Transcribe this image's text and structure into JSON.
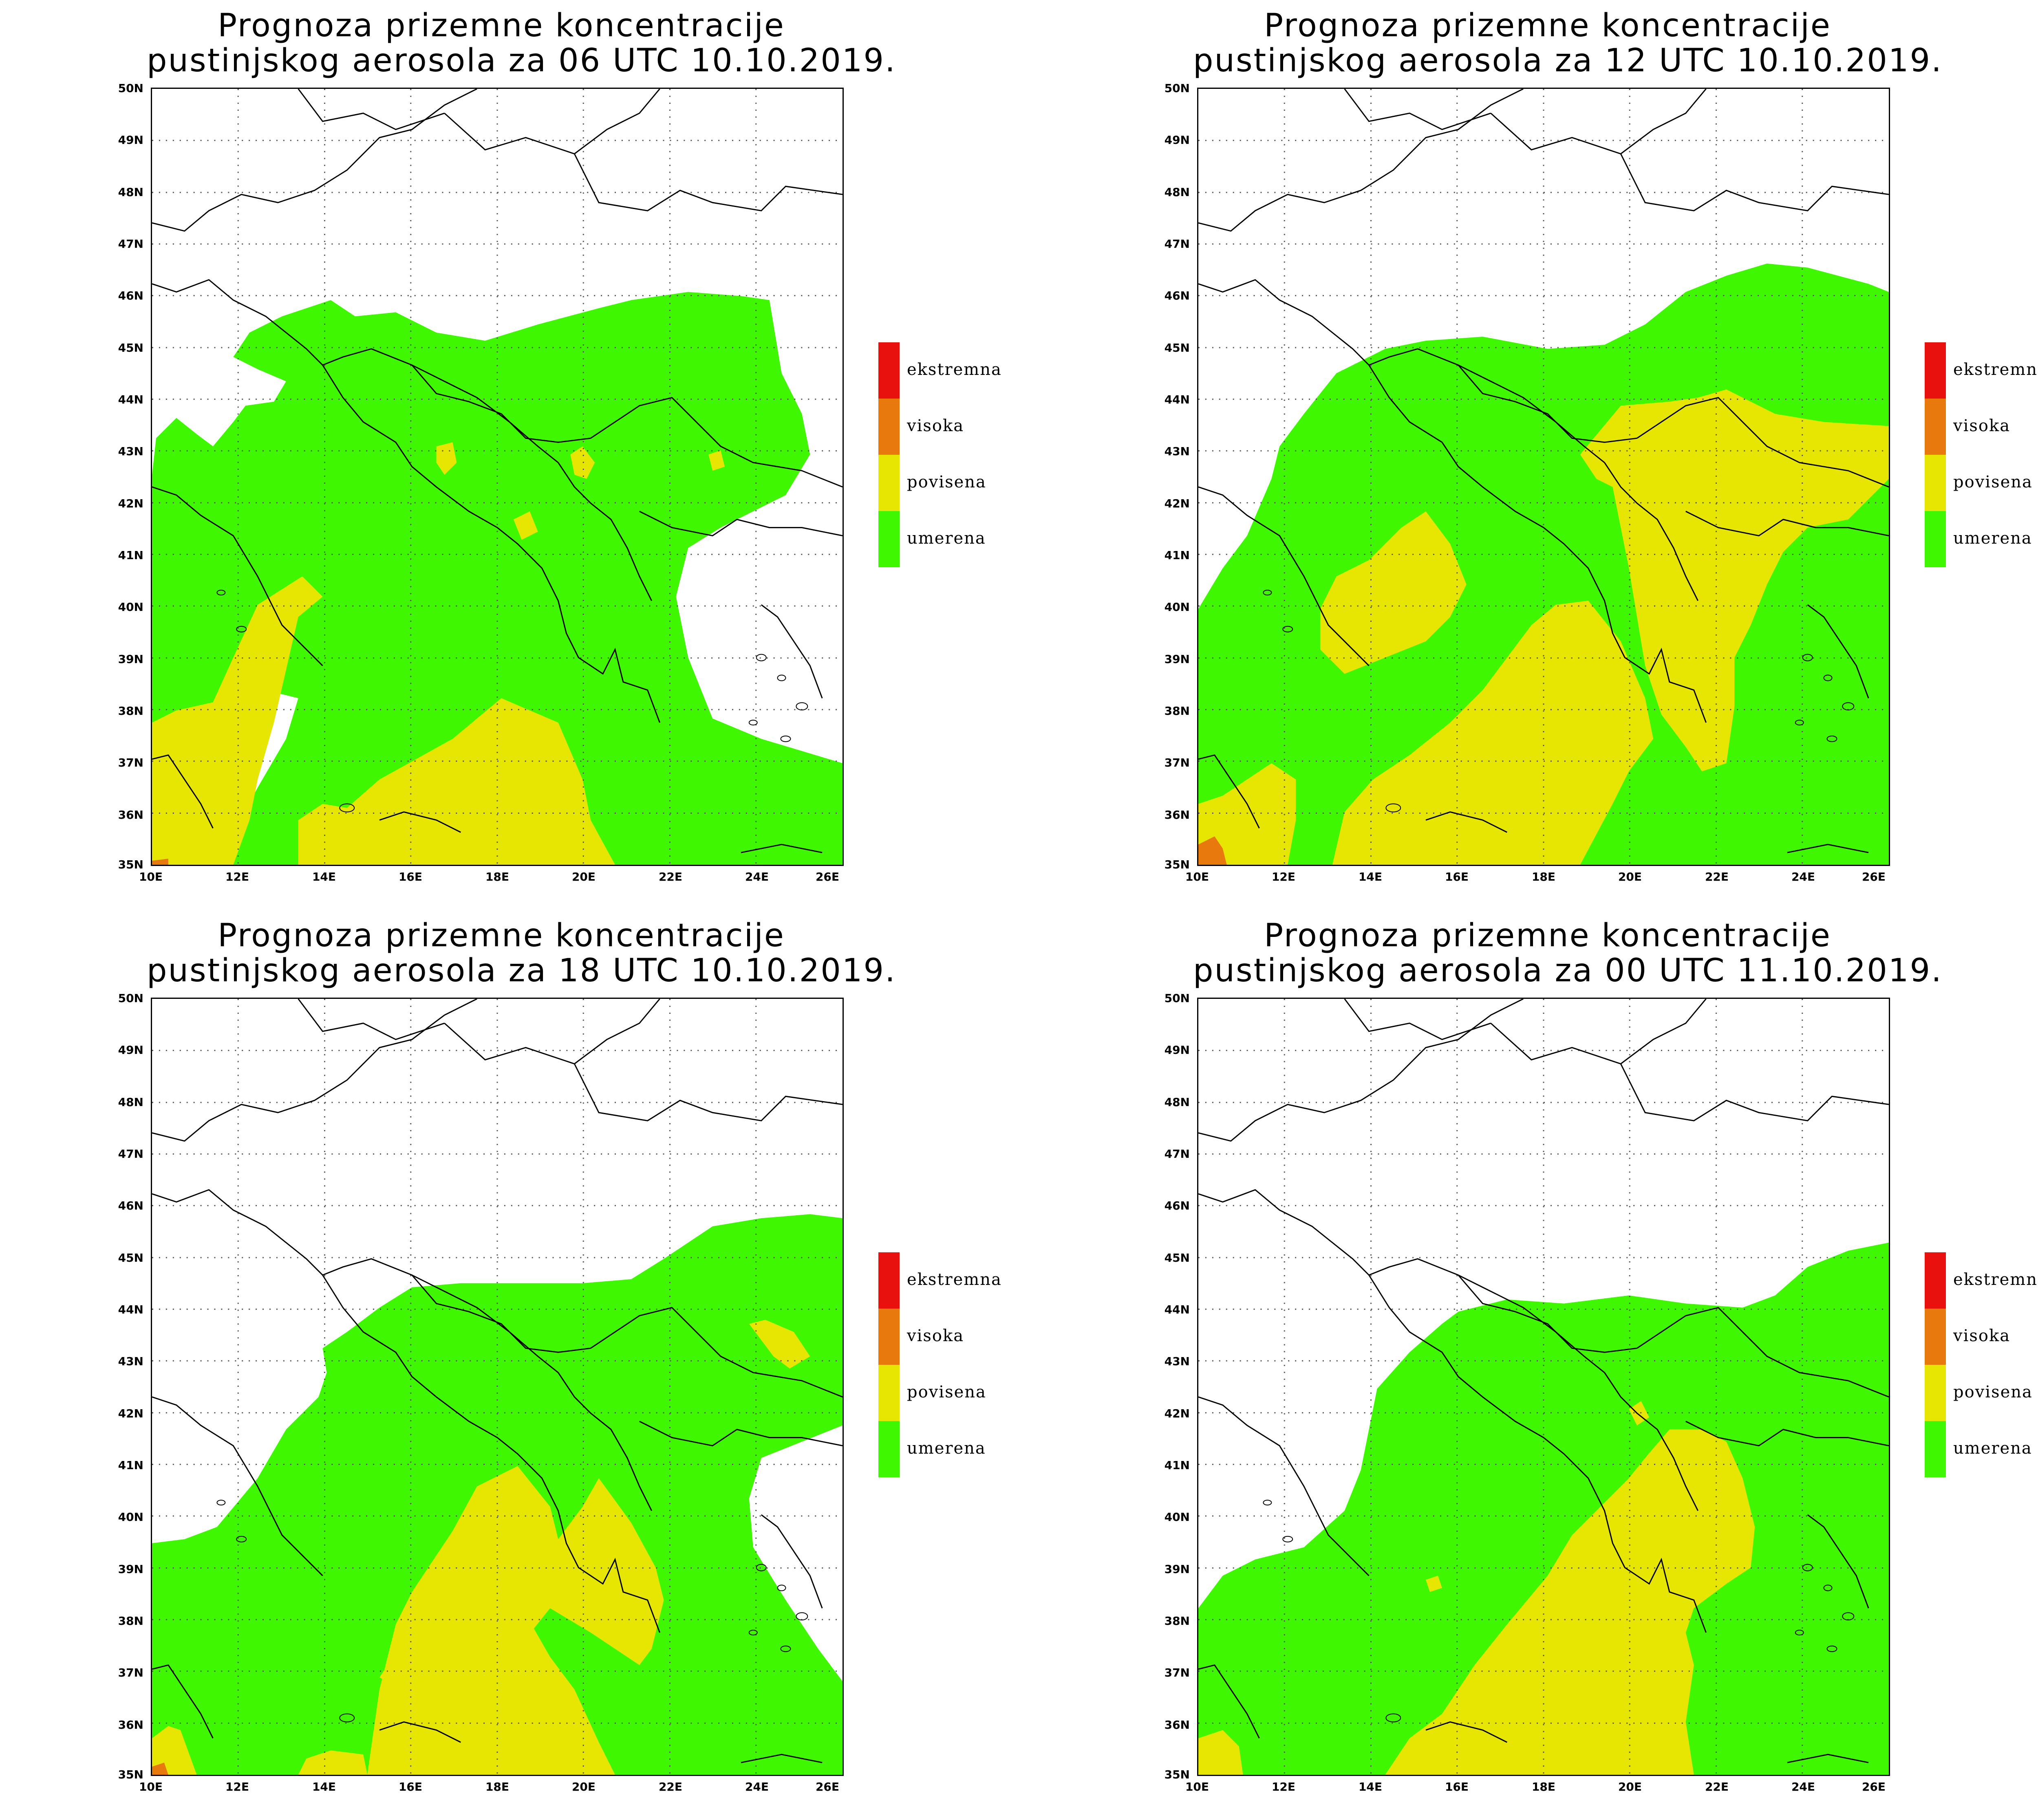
{
  "colors": {
    "ekstremna": "#e8110e",
    "visoka": "#e8790c",
    "povisena": "#e7e602",
    "umerena": "#3ef700",
    "land_border": "#000000",
    "grid": "#444444"
  },
  "axes": {
    "y_labels": [
      "50N",
      "49N",
      "48N",
      "47N",
      "46N",
      "45N",
      "44N",
      "43N",
      "42N",
      "41N",
      "40N",
      "39N",
      "38N",
      "37N",
      "36N",
      "35N"
    ],
    "x_labels": [
      "10E",
      "12E",
      "14E",
      "16E",
      "18E",
      "20E",
      "22E",
      "24E",
      "26E"
    ]
  },
  "legend": [
    {
      "label": "ekstremna",
      "color_key": "ekstremna"
    },
    {
      "label": "visoka",
      "color_key": "visoka"
    },
    {
      "label": "povisena",
      "color_key": "povisena"
    },
    {
      "label": "umerena",
      "color_key": "umerena"
    }
  ],
  "panels": [
    {
      "id": "p06",
      "title_line1": "Prognoza prizemne koncentracije",
      "title_line2": "pustinjskog aerosola za 06 UTC 10.10.2019."
    },
    {
      "id": "p12",
      "title_line1": "Prognoza prizemne koncentracije",
      "title_line2": "pustinjskog aerosola za 12 UTC 10.10.2019."
    },
    {
      "id": "p18",
      "title_line1": "Prognoza prizemne koncentracije",
      "title_line2": "pustinjskog aerosola za 18 UTC 10.10.2019."
    },
    {
      "id": "p00",
      "title_line1": "Prognoza prizemne koncentracije",
      "title_line2": "pustinjskog aerosola za 00 UTC 11.10.2019."
    }
  ]
}
